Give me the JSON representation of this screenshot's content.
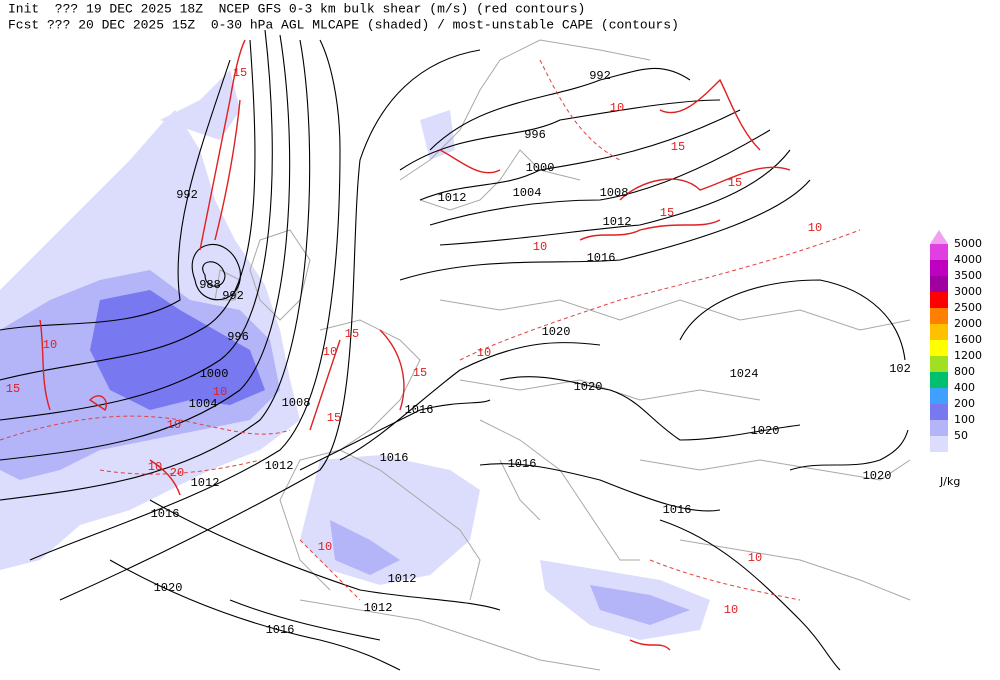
{
  "header": {
    "line1": "Init  ??? 19 DEC 2025 18Z  NCEP GFS 0-3 km bulk shear (m/s) (red contours)",
    "line2": "Fcst ??? 20 DEC 2025 15Z  0-30 hPa AGL MLCAPE (shaded) / most-unstable CAPE (contours)"
  },
  "legend": {
    "unit": "J/kg",
    "top_color": "#f0a0f0",
    "levels": [
      {
        "value": 5000,
        "color": "#e040e0"
      },
      {
        "value": 4000,
        "color": "#c000c0"
      },
      {
        "value": 3500,
        "color": "#a000a0"
      },
      {
        "value": 3000,
        "color": "#ff0000"
      },
      {
        "value": 2500,
        "color": "#ff8000"
      },
      {
        "value": 2000,
        "color": "#ffc000"
      },
      {
        "value": 1600,
        "color": "#ffff00"
      },
      {
        "value": 1200,
        "color": "#a0e020"
      },
      {
        "value": 800,
        "color": "#00c070"
      },
      {
        "value": 400,
        "color": "#40a0ff"
      },
      {
        "value": 200,
        "color": "#7878f0"
      },
      {
        "value": 100,
        "color": "#b4b4f8"
      },
      {
        "value": 50,
        "color": "#dcdcfc"
      }
    ]
  },
  "isobar_labels": [
    992,
    996,
    1000,
    1004,
    1008,
    1012,
    1012,
    1016,
    992,
    988,
    992,
    996,
    1000,
    1004,
    1008,
    1012,
    1012,
    1016,
    1020,
    1020,
    1016,
    1016,
    1016,
    1016,
    1020,
    1024,
    1020,
    1012,
    1012,
    1020,
    1016,
    102
  ],
  "shear_labels": [
    15,
    10,
    10,
    10,
    20,
    15,
    15,
    10,
    15,
    10,
    15,
    10,
    10,
    15,
    15,
    15,
    10,
    10,
    10,
    10,
    10
  ]
}
